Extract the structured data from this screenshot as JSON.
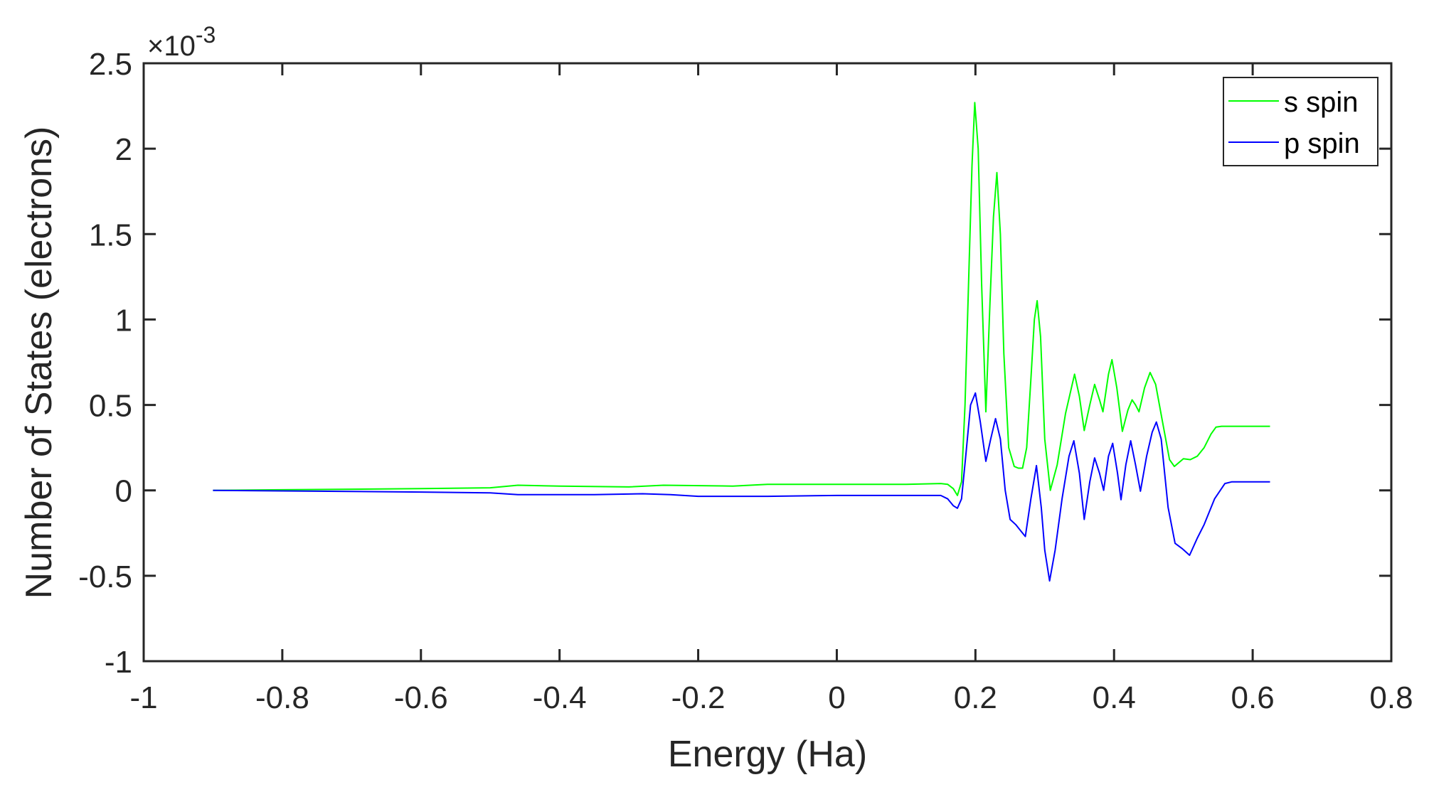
{
  "chart_data": {
    "type": "line",
    "title": "",
    "xlabel": "Energy (Ha)",
    "ylabel": "Number of States (electrons)",
    "y_exponent_label": "×10",
    "y_exponent_power": "-3",
    "y_scale_factor": 0.001,
    "xlim": [
      -1,
      0.8
    ],
    "ylim": [
      -1,
      2.5
    ],
    "x_ticks": [
      -1,
      -0.8,
      -0.6,
      -0.4,
      -0.2,
      0,
      0.2,
      0.4,
      0.6,
      0.8
    ],
    "x_tick_labels": [
      "-1",
      "-0.8",
      "-0.6",
      "-0.4",
      "-0.2",
      "0",
      "0.2",
      "0.4",
      "0.6",
      "0.8"
    ],
    "y_ticks": [
      -1,
      -0.5,
      0,
      0.5,
      1,
      1.5,
      2,
      2.5
    ],
    "y_tick_labels": [
      "-1",
      "-0.5",
      "0",
      "0.5",
      "1",
      "1.5",
      "2",
      "2.5"
    ],
    "grid": false,
    "legend_position": "upper right",
    "series": [
      {
        "name": "s spin",
        "color": "#00ff00",
        "points": [
          [
            -0.9,
            0
          ],
          [
            -0.75,
            0.005
          ],
          [
            -0.6,
            0.01
          ],
          [
            -0.5,
            0.015
          ],
          [
            -0.46,
            0.03
          ],
          [
            -0.4,
            0.025
          ],
          [
            -0.3,
            0.02
          ],
          [
            -0.25,
            0.03
          ],
          [
            -0.15,
            0.025
          ],
          [
            -0.1,
            0.035
          ],
          [
            0.0,
            0.035
          ],
          [
            0.1,
            0.035
          ],
          [
            0.15,
            0.04
          ],
          [
            0.16,
            0.035
          ],
          [
            0.168,
            0.01
          ],
          [
            0.174,
            -0.03
          ],
          [
            0.18,
            0.05
          ],
          [
            0.185,
            0.5
          ],
          [
            0.19,
            1.2
          ],
          [
            0.195,
            1.9
          ],
          [
            0.199,
            2.27
          ],
          [
            0.204,
            2.0
          ],
          [
            0.209,
            1.2
          ],
          [
            0.215,
            0.46
          ],
          [
            0.221,
            1.1
          ],
          [
            0.226,
            1.6
          ],
          [
            0.231,
            1.86
          ],
          [
            0.236,
            1.5
          ],
          [
            0.241,
            0.8
          ],
          [
            0.248,
            0.25
          ],
          [
            0.256,
            0.14
          ],
          [
            0.262,
            0.13
          ],
          [
            0.268,
            0.13
          ],
          [
            0.274,
            0.25
          ],
          [
            0.28,
            0.65
          ],
          [
            0.285,
            1.0
          ],
          [
            0.289,
            1.11
          ],
          [
            0.294,
            0.9
          ],
          [
            0.3,
            0.3
          ],
          [
            0.308,
            0.0
          ],
          [
            0.318,
            0.15
          ],
          [
            0.33,
            0.45
          ],
          [
            0.343,
            0.68
          ],
          [
            0.35,
            0.55
          ],
          [
            0.357,
            0.35
          ],
          [
            0.365,
            0.5
          ],
          [
            0.372,
            0.62
          ],
          [
            0.379,
            0.53
          ],
          [
            0.384,
            0.46
          ],
          [
            0.392,
            0.68
          ],
          [
            0.397,
            0.765
          ],
          [
            0.404,
            0.6
          ],
          [
            0.412,
            0.345
          ],
          [
            0.42,
            0.47
          ],
          [
            0.426,
            0.53
          ],
          [
            0.431,
            0.5
          ],
          [
            0.436,
            0.46
          ],
          [
            0.444,
            0.6
          ],
          [
            0.452,
            0.69
          ],
          [
            0.46,
            0.62
          ],
          [
            0.47,
            0.4
          ],
          [
            0.48,
            0.18
          ],
          [
            0.487,
            0.14
          ],
          [
            0.5,
            0.185
          ],
          [
            0.51,
            0.18
          ],
          [
            0.52,
            0.2
          ],
          [
            0.53,
            0.25
          ],
          [
            0.54,
            0.33
          ],
          [
            0.547,
            0.37
          ],
          [
            0.555,
            0.375
          ],
          [
            0.625,
            0.375
          ]
        ]
      },
      {
        "name": "p spin",
        "color": "#0000ff",
        "points": [
          [
            -0.9,
            0
          ],
          [
            -0.75,
            -0.005
          ],
          [
            -0.6,
            -0.01
          ],
          [
            -0.5,
            -0.015
          ],
          [
            -0.46,
            -0.025
          ],
          [
            -0.35,
            -0.025
          ],
          [
            -0.28,
            -0.02
          ],
          [
            -0.24,
            -0.025
          ],
          [
            -0.2,
            -0.035
          ],
          [
            -0.1,
            -0.035
          ],
          [
            0.0,
            -0.03
          ],
          [
            0.1,
            -0.03
          ],
          [
            0.15,
            -0.03
          ],
          [
            0.16,
            -0.05
          ],
          [
            0.168,
            -0.09
          ],
          [
            0.174,
            -0.105
          ],
          [
            0.18,
            -0.05
          ],
          [
            0.186,
            0.2
          ],
          [
            0.193,
            0.5
          ],
          [
            0.2,
            0.57
          ],
          [
            0.207,
            0.4
          ],
          [
            0.215,
            0.17
          ],
          [
            0.222,
            0.3
          ],
          [
            0.229,
            0.42
          ],
          [
            0.236,
            0.3
          ],
          [
            0.243,
            0.0
          ],
          [
            0.25,
            -0.17
          ],
          [
            0.258,
            -0.2
          ],
          [
            0.266,
            -0.24
          ],
          [
            0.272,
            -0.27
          ],
          [
            0.28,
            -0.05
          ],
          [
            0.288,
            0.145
          ],
          [
            0.295,
            -0.1
          ],
          [
            0.3,
            -0.35
          ],
          [
            0.307,
            -0.53
          ],
          [
            0.315,
            -0.35
          ],
          [
            0.325,
            -0.05
          ],
          [
            0.335,
            0.2
          ],
          [
            0.342,
            0.29
          ],
          [
            0.35,
            0.1
          ],
          [
            0.357,
            -0.17
          ],
          [
            0.365,
            0.05
          ],
          [
            0.372,
            0.19
          ],
          [
            0.379,
            0.1
          ],
          [
            0.385,
            0.0
          ],
          [
            0.392,
            0.2
          ],
          [
            0.398,
            0.275
          ],
          [
            0.405,
            0.1
          ],
          [
            0.41,
            -0.055
          ],
          [
            0.417,
            0.15
          ],
          [
            0.424,
            0.29
          ],
          [
            0.431,
            0.15
          ],
          [
            0.438,
            -0.005
          ],
          [
            0.447,
            0.2
          ],
          [
            0.455,
            0.34
          ],
          [
            0.461,
            0.4
          ],
          [
            0.468,
            0.3
          ],
          [
            0.478,
            -0.1
          ],
          [
            0.488,
            -0.31
          ],
          [
            0.498,
            -0.34
          ],
          [
            0.509,
            -0.38
          ],
          [
            0.52,
            -0.28
          ],
          [
            0.53,
            -0.2
          ],
          [
            0.545,
            -0.05
          ],
          [
            0.56,
            0.04
          ],
          [
            0.57,
            0.05
          ],
          [
            0.625,
            0.05
          ]
        ]
      }
    ]
  },
  "colors": {
    "axis": "#262626",
    "background": "#ffffff",
    "s_spin": "#00ff00",
    "p_spin": "#0000ff"
  }
}
